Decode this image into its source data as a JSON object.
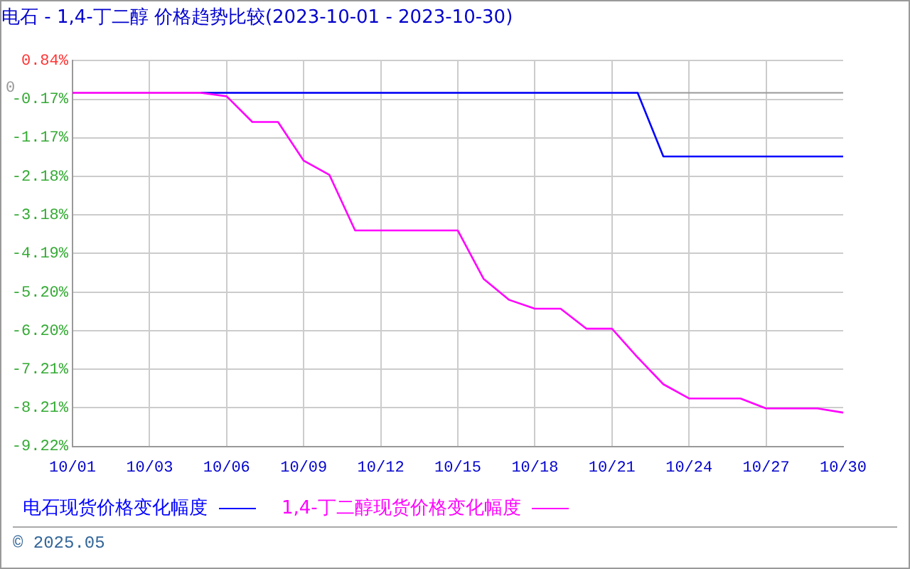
{
  "chart_data": {
    "type": "line",
    "title": "电石 - 1,4-丁二醇 价格趋势比较(2023-10-01 - 2023-10-30)",
    "categories": [
      "10/01",
      null,
      null,
      "10/03",
      null,
      null,
      "10/06",
      null,
      null,
      "10/09",
      null,
      null,
      "10/12",
      null,
      null,
      "10/15",
      null,
      null,
      "10/18",
      null,
      null,
      "10/21",
      null,
      null,
      "10/24",
      null,
      null,
      "10/27",
      null,
      null,
      "10/30"
    ],
    "series": [
      {
        "name": "电石现货价格变化幅度",
        "color": "#0000ff",
        "values": [
          null,
          null,
          null,
          null,
          null,
          0,
          0,
          0,
          0,
          0,
          0,
          0,
          0,
          0,
          0,
          0,
          0,
          0,
          0,
          0,
          0,
          0,
          0,
          -1.66,
          -1.66,
          -1.66,
          -1.66,
          -1.66,
          -1.66,
          -1.66,
          -1.66
        ]
      },
      {
        "name": "1,4-丁二醇现货价格变化幅度",
        "color": "#ff00ff",
        "values": [
          0,
          0,
          0,
          0,
          0,
          0,
          -0.09,
          -0.76,
          -0.76,
          -1.77,
          -2.14,
          -3.59,
          -3.59,
          -3.59,
          -3.59,
          -3.59,
          -4.85,
          -5.4,
          -5.63,
          -5.63,
          -6.15,
          -6.15,
          -6.9,
          -7.6,
          -7.97,
          -7.97,
          -7.97,
          -8.23,
          -8.23,
          -8.23,
          -8.34
        ]
      }
    ],
    "ylim": [
      -9.22,
      0.84
    ],
    "yticks": [
      {
        "value": 0.84,
        "label": "0.84%"
      },
      {
        "value": -0.17,
        "label": "-0.17%"
      },
      {
        "value": -1.17,
        "label": "-1.17%"
      },
      {
        "value": -2.18,
        "label": "-2.18%"
      },
      {
        "value": -3.18,
        "label": "-3.18%"
      },
      {
        "value": -4.19,
        "label": "-4.19%"
      },
      {
        "value": -5.2,
        "label": "-5.20%"
      },
      {
        "value": -6.2,
        "label": "-6.20%"
      },
      {
        "value": -7.21,
        "label": "-7.21%"
      },
      {
        "value": -8.21,
        "label": "-8.21%"
      },
      {
        "value": -9.22,
        "label": "-9.22%"
      }
    ],
    "ref_lines": [
      {
        "axis": "y",
        "value": 0,
        "label": "0",
        "color": "#999999"
      }
    ],
    "grid": true,
    "legend": "bottom",
    "marker": "none",
    "line_style": "solid",
    "annotations": [
      "© 2025.05"
    ]
  }
}
